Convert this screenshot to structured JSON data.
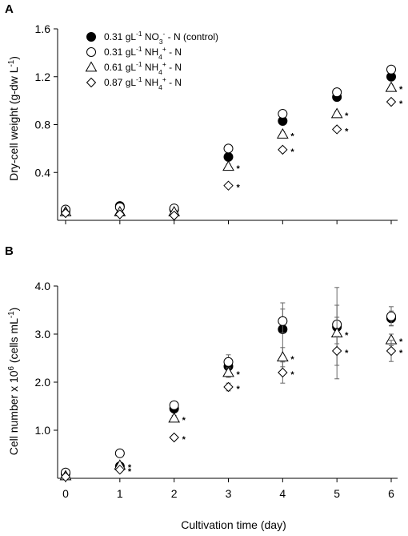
{
  "colors": {
    "axis": "#000000",
    "filled_marker": "#000000",
    "open_marker": "#ffffff",
    "error_bar": "#666666"
  },
  "legend": {
    "placement": "top-left inside panel A",
    "entries": [
      {
        "marker": "filled-circle",
        "parts": [
          [
            "0.31 gL",
            ""
          ],
          [
            "-1",
            "sup"
          ],
          [
            " NO",
            ""
          ],
          [
            "3",
            "sub"
          ],
          [
            "-",
            "sup"
          ],
          [
            " - N (control)",
            ""
          ]
        ]
      },
      {
        "marker": "open-circle",
        "parts": [
          [
            "0.31 gL",
            ""
          ],
          [
            "-1",
            "sup"
          ],
          [
            " NH",
            ""
          ],
          [
            "4",
            "sub"
          ],
          [
            "+",
            "sup"
          ],
          [
            " - N",
            ""
          ]
        ]
      },
      {
        "marker": "open-triangle",
        "parts": [
          [
            "0.61 gL",
            ""
          ],
          [
            "-1",
            "sup"
          ],
          [
            " NH",
            ""
          ],
          [
            "4",
            "sub"
          ],
          [
            "+",
            "sup"
          ],
          [
            " - N",
            ""
          ]
        ]
      },
      {
        "marker": "open-diamond",
        "parts": [
          [
            "0.87 gL",
            ""
          ],
          [
            "-1",
            "sup"
          ],
          [
            " NH",
            ""
          ],
          [
            "4",
            "sub"
          ],
          [
            "+",
            "sup"
          ],
          [
            " - N",
            ""
          ]
        ]
      }
    ]
  },
  "chart_data": [
    {
      "type": "scatter",
      "panel": "A",
      "title": "",
      "ylabel_parts": [
        [
          "Dry-cell weight (g-dw L",
          ""
        ],
        [
          "-1",
          "sup"
        ],
        [
          ")",
          ""
        ]
      ],
      "xlabel": "",
      "x": [
        0,
        1,
        2,
        3,
        4,
        5,
        6
      ],
      "xlim": [
        0,
        6
      ],
      "ylim": [
        0,
        1.6
      ],
      "y_ticks": [
        0.4,
        0.8,
        1.2,
        1.6
      ],
      "y_tick_labels": [
        "0.4",
        "0.8",
        "1.2",
        "1.6"
      ],
      "x_ticks": [
        0,
        1,
        2,
        3,
        4,
        5,
        6
      ],
      "x_tick_labels": [],
      "grid": false,
      "series": [
        {
          "marker": "filled-circle",
          "values": [
            0.08,
            0.12,
            0.09,
            0.53,
            0.83,
            1.03,
            1.2
          ],
          "err": [
            0.01,
            0.01,
            0.01,
            0.02,
            0.02,
            0.02,
            0.02
          ],
          "sig": [
            false,
            false,
            false,
            false,
            false,
            false,
            false
          ]
        },
        {
          "marker": "open-circle",
          "values": [
            0.09,
            0.11,
            0.1,
            0.6,
            0.89,
            1.07,
            1.26
          ],
          "err": [
            0.01,
            0.01,
            0.01,
            0.02,
            0.02,
            0.02,
            0.02
          ],
          "sig": [
            false,
            false,
            false,
            false,
            false,
            false,
            false
          ]
        },
        {
          "marker": "open-triangle",
          "values": [
            0.07,
            0.07,
            0.07,
            0.45,
            0.72,
            0.89,
            1.11
          ],
          "err": [
            0.01,
            0.01,
            0.01,
            0.02,
            0.02,
            0.02,
            0.02
          ],
          "sig": [
            false,
            false,
            false,
            true,
            true,
            true,
            true
          ]
        },
        {
          "marker": "open-diamond",
          "values": [
            0.06,
            0.05,
            0.04,
            0.29,
            0.59,
            0.76,
            0.99
          ],
          "err": [
            0.01,
            0.01,
            0.01,
            0.01,
            0.01,
            0.01,
            0.01
          ],
          "sig": [
            false,
            false,
            false,
            true,
            true,
            true,
            true
          ]
        }
      ],
      "sig_symbol": "*"
    },
    {
      "type": "scatter",
      "panel": "B",
      "title": "",
      "ylabel_parts": [
        [
          "Cell number x 10",
          ""
        ],
        [
          "6",
          "sup"
        ],
        [
          " (cells mL",
          ""
        ],
        [
          "-1",
          "sup"
        ],
        [
          ")",
          ""
        ]
      ],
      "xlabel": "Cultivation time (day)",
      "x": [
        0,
        1,
        2,
        3,
        4,
        5,
        6
      ],
      "xlim": [
        0,
        6
      ],
      "ylim": [
        0,
        4.0
      ],
      "y_ticks": [
        1.0,
        2.0,
        3.0,
        4.0
      ],
      "y_tick_labels": [
        "1.0",
        "2.0",
        "3.0",
        "4.0"
      ],
      "x_ticks": [
        0,
        1,
        2,
        3,
        4,
        5,
        6
      ],
      "x_tick_labels": [
        "0",
        "1",
        "2",
        "3",
        "4",
        "5",
        "6"
      ],
      "grid": false,
      "series": [
        {
          "marker": "filled-circle",
          "values": [
            0.1,
            0.25,
            1.45,
            2.33,
            3.1,
            3.15,
            3.33
          ],
          "err": [
            0.02,
            0.03,
            0.08,
            0.1,
            0.55,
            0.2,
            0.15
          ],
          "sig": [
            false,
            false,
            false,
            false,
            false,
            false,
            false
          ]
        },
        {
          "marker": "open-circle",
          "values": [
            0.12,
            0.52,
            1.52,
            2.42,
            3.27,
            3.2,
            3.37
          ],
          "err": [
            0.02,
            0.03,
            0.06,
            0.15,
            0.25,
            0.4,
            0.2
          ],
          "sig": [
            false,
            false,
            false,
            false,
            false,
            false,
            false
          ]
        },
        {
          "marker": "open-triangle",
          "values": [
            0.05,
            0.27,
            1.25,
            2.2,
            2.52,
            3.02,
            2.88
          ],
          "err": [
            0.02,
            0.03,
            0.06,
            0.1,
            0.2,
            0.95,
            0.12
          ],
          "sig": [
            false,
            true,
            true,
            true,
            true,
            true,
            true
          ]
        },
        {
          "marker": "open-diamond",
          "values": [
            0.03,
            0.18,
            0.85,
            1.9,
            2.2,
            2.65,
            2.65
          ],
          "err": [
            0.01,
            0.02,
            0.05,
            0.08,
            0.22,
            0.3,
            0.22
          ],
          "sig": [
            false,
            true,
            true,
            true,
            true,
            true,
            true
          ]
        }
      ],
      "sig_symbol": "*"
    }
  ]
}
